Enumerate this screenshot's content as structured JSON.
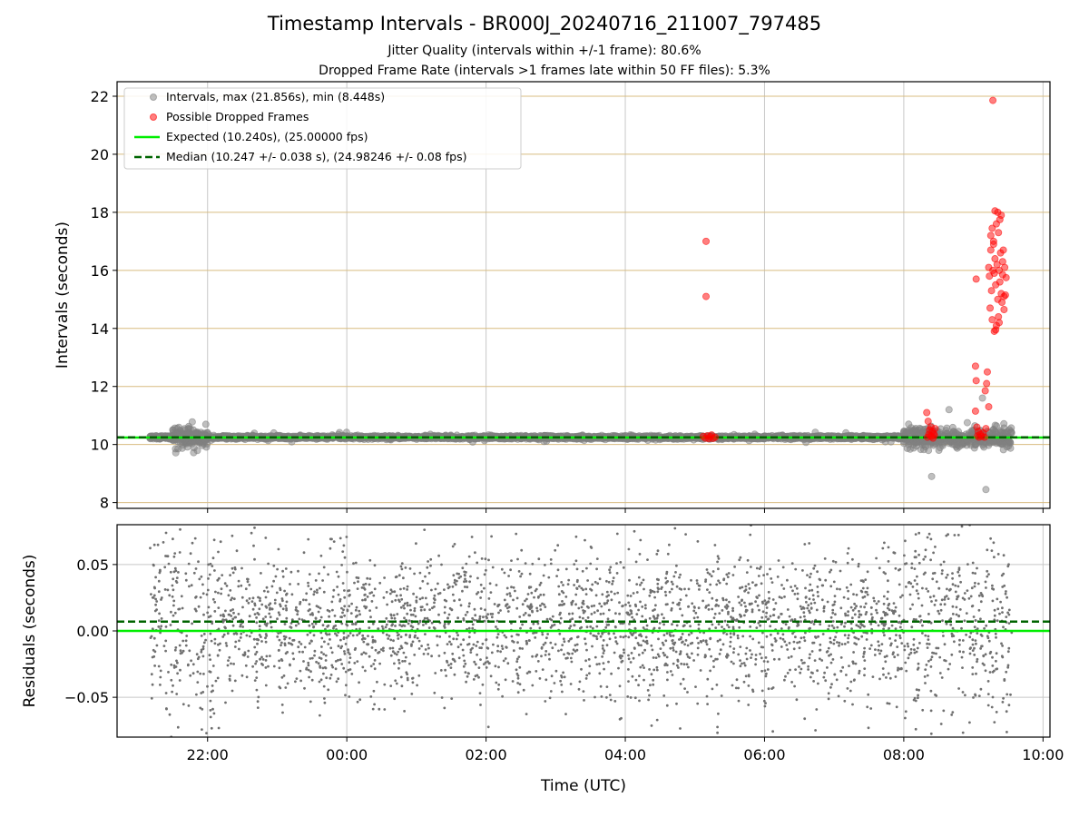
{
  "title": "Timestamp Intervals - BR000J_20240716_211007_797485",
  "subtitle_1": "Jitter Quality (intervals within +/-1 frame): 80.6%",
  "subtitle_2": "Dropped Frame Rate (intervals >1 frames late within 50 FF files): 5.3%",
  "colors": {
    "intervals": "#808080",
    "dropped": "#ff0000",
    "expected": "#00ee00",
    "median": "#006400",
    "h_grid": "#d8bc80",
    "v_grid": "#c8c8c8"
  },
  "chart_data": [
    {
      "type": "scatter",
      "panel": "top",
      "ylabel": "Intervals (seconds)",
      "xlabel": "",
      "x_unit": "hours relative to 00:00 UTC",
      "xlim": [
        -3.3,
        10.1
      ],
      "ylim": [
        7.8,
        22.5
      ],
      "x_ticks": [
        -2,
        0,
        2,
        4,
        6,
        8,
        10
      ],
      "y_ticks": [
        8,
        10,
        12,
        14,
        16,
        18,
        20,
        22
      ],
      "y_tick_labels": [
        "8",
        "10",
        "12",
        "14",
        "16",
        "18",
        "20",
        "22"
      ],
      "grid": true,
      "legend_position": "upper-left",
      "legend": [
        "Intervals, max (21.856s), min (8.448s)",
        "Possible Dropped Frames",
        "Expected (10.240s), (25.00000 fps)",
        "Median (10.247 +/- 0.038 s), (24.98246 +/- 0.08 fps)"
      ],
      "series": [
        {
          "name": "Intervals, max (21.856s), min (8.448s)",
          "kind": "scatter",
          "baseline": 10.247,
          "x_range": [
            -2.83,
            9.55
          ],
          "approx_points": 3600,
          "max": 21.856,
          "min": 8.448,
          "notable_points": [
            {
              "x": 9.18,
              "y": 8.448
            },
            {
              "x": 8.4,
              "y": 8.9
            },
            {
              "x": 8.65,
              "y": 11.2
            },
            {
              "x": 9.13,
              "y": 11.6
            },
            {
              "x": -2.2,
              "y": 9.72
            },
            {
              "x": -2.22,
              "y": 10.78
            },
            {
              "x": 8.07,
              "y": 10.7
            }
          ]
        },
        {
          "name": "Possible Dropped Frames",
          "kind": "scatter",
          "points": [
            {
              "x": 5.16,
              "y": 17.0
            },
            {
              "x": 5.16,
              "y": 15.1
            },
            {
              "x": 5.12,
              "y": 10.28
            },
            {
              "x": 5.15,
              "y": 10.22
            },
            {
              "x": 5.18,
              "y": 10.3
            },
            {
              "x": 5.2,
              "y": 10.2
            },
            {
              "x": 5.22,
              "y": 10.27
            },
            {
              "x": 5.24,
              "y": 10.33
            },
            {
              "x": 5.26,
              "y": 10.21
            },
            {
              "x": 5.29,
              "y": 10.25
            },
            {
              "x": 8.33,
              "y": 11.1
            },
            {
              "x": 8.34,
              "y": 10.25
            },
            {
              "x": 8.35,
              "y": 10.8
            },
            {
              "x": 8.36,
              "y": 10.35
            },
            {
              "x": 8.37,
              "y": 10.5
            },
            {
              "x": 8.38,
              "y": 10.3
            },
            {
              "x": 8.39,
              "y": 10.6
            },
            {
              "x": 8.4,
              "y": 10.28
            },
            {
              "x": 8.41,
              "y": 10.45
            },
            {
              "x": 8.42,
              "y": 10.22
            },
            {
              "x": 8.43,
              "y": 10.38
            },
            {
              "x": 8.44,
              "y": 10.32
            },
            {
              "x": 8.45,
              "y": 10.55
            },
            {
              "x": 9.03,
              "y": 12.7
            },
            {
              "x": 9.04,
              "y": 12.2
            },
            {
              "x": 9.03,
              "y": 11.15
            },
            {
              "x": 9.05,
              "y": 10.6
            },
            {
              "x": 9.06,
              "y": 10.3
            },
            {
              "x": 9.07,
              "y": 10.45
            },
            {
              "x": 9.08,
              "y": 10.25
            },
            {
              "x": 9.1,
              "y": 10.35
            },
            {
              "x": 9.12,
              "y": 10.28
            },
            {
              "x": 9.14,
              "y": 10.4
            },
            {
              "x": 9.16,
              "y": 10.25
            },
            {
              "x": 9.18,
              "y": 10.55
            },
            {
              "x": 9.04,
              "y": 15.7
            },
            {
              "x": 9.17,
              "y": 11.85
            },
            {
              "x": 9.2,
              "y": 12.5
            },
            {
              "x": 9.19,
              "y": 12.1
            },
            {
              "x": 9.22,
              "y": 11.3
            },
            {
              "x": 9.28,
              "y": 21.856
            },
            {
              "x": 9.22,
              "y": 16.1
            },
            {
              "x": 9.23,
              "y": 15.8
            },
            {
              "x": 9.24,
              "y": 14.7
            },
            {
              "x": 9.25,
              "y": 16.7
            },
            {
              "x": 9.25,
              "y": 17.2
            },
            {
              "x": 9.26,
              "y": 15.3
            },
            {
              "x": 9.27,
              "y": 17.45
            },
            {
              "x": 9.27,
              "y": 14.3
            },
            {
              "x": 9.28,
              "y": 16.0
            },
            {
              "x": 9.29,
              "y": 17.0
            },
            {
              "x": 9.3,
              "y": 13.9
            },
            {
              "x": 9.3,
              "y": 15.9
            },
            {
              "x": 9.31,
              "y": 18.05
            },
            {
              "x": 9.31,
              "y": 16.4
            },
            {
              "x": 9.32,
              "y": 15.5
            },
            {
              "x": 9.33,
              "y": 17.6
            },
            {
              "x": 9.33,
              "y": 14.1
            },
            {
              "x": 9.34,
              "y": 16.2
            },
            {
              "x": 9.35,
              "y": 18.0
            },
            {
              "x": 9.35,
              "y": 15.0
            },
            {
              "x": 9.36,
              "y": 17.3
            },
            {
              "x": 9.36,
              "y": 14.4
            },
            {
              "x": 9.37,
              "y": 16.0
            },
            {
              "x": 9.38,
              "y": 15.6
            },
            {
              "x": 9.38,
              "y": 17.75
            },
            {
              "x": 9.39,
              "y": 16.6
            },
            {
              "x": 9.4,
              "y": 15.2
            },
            {
              "x": 9.4,
              "y": 17.9
            },
            {
              "x": 9.41,
              "y": 14.9
            },
            {
              "x": 9.42,
              "y": 16.3
            },
            {
              "x": 9.42,
              "y": 15.85
            },
            {
              "x": 9.43,
              "y": 16.7
            },
            {
              "x": 9.44,
              "y": 15.1
            },
            {
              "x": 9.44,
              "y": 14.65
            },
            {
              "x": 9.45,
              "y": 16.1
            },
            {
              "x": 9.46,
              "y": 15.15
            },
            {
              "x": 9.47,
              "y": 15.75
            },
            {
              "x": 9.32,
              "y": 13.95
            },
            {
              "x": 9.37,
              "y": 14.2
            },
            {
              "x": 9.29,
              "y": 16.9
            }
          ]
        },
        {
          "name": "Expected (10.240s), (25.00000 fps)",
          "kind": "hline",
          "y": 10.24,
          "style": "solid"
        },
        {
          "name": "Median (10.247 +/- 0.038 s), (24.98246 +/- 0.08 fps)",
          "kind": "hline",
          "y": 10.247,
          "style": "dashed"
        }
      ]
    },
    {
      "type": "scatter",
      "panel": "bottom",
      "xlabel": "Time (UTC)",
      "ylabel": "Residuals (seconds)",
      "xlim": [
        -3.3,
        10.1
      ],
      "ylim": [
        -0.08,
        0.08
      ],
      "x_ticks": [
        -2,
        0,
        2,
        4,
        6,
        8,
        10
      ],
      "x_tick_labels": [
        "22:00",
        "00:00",
        "02:00",
        "04:00",
        "06:00",
        "08:00",
        "10:00"
      ],
      "y_ticks": [
        -0.05,
        0.0,
        0.05
      ],
      "y_tick_labels": [
        "−0.05",
        "0.00",
        "0.05"
      ],
      "grid": true,
      "series": [
        {
          "name": "",
          "kind": "scatter",
          "x_range": [
            -2.83,
            9.55
          ],
          "approx_points": 3100,
          "std": 0.028,
          "mean": 0.005
        },
        {
          "name": "",
          "kind": "hline",
          "y": 0.0,
          "style": "solid"
        },
        {
          "name": "",
          "kind": "hline",
          "y": 0.007,
          "style": "dashed"
        }
      ]
    }
  ]
}
